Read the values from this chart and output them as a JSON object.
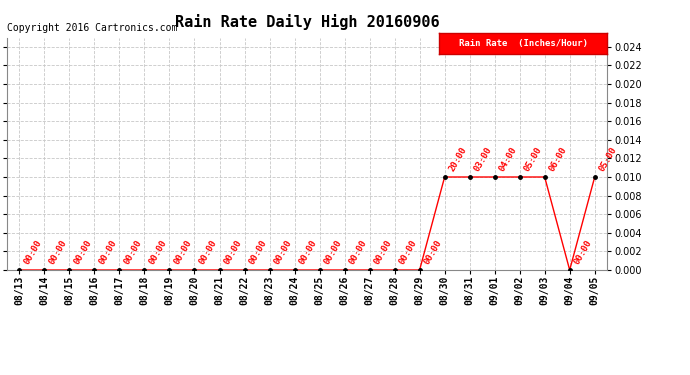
{
  "title": "Rain Rate Daily High 20160906",
  "copyright": "Copyright 2016 Cartronics.com",
  "legend_label": "Rain Rate  (Inches/Hour)",
  "x_labels": [
    "08/13",
    "08/14",
    "08/15",
    "08/16",
    "08/17",
    "08/18",
    "08/19",
    "08/20",
    "08/21",
    "08/22",
    "08/23",
    "08/24",
    "08/25",
    "08/26",
    "08/27",
    "08/28",
    "08/29",
    "08/30",
    "08/31",
    "09/01",
    "09/02",
    "09/03",
    "09/04",
    "09/05"
  ],
  "x_indices": [
    0,
    1,
    2,
    3,
    4,
    5,
    6,
    7,
    8,
    9,
    10,
    11,
    12,
    13,
    14,
    15,
    16,
    17,
    18,
    19,
    20,
    21,
    22,
    23
  ],
  "y_values": [
    0.0,
    0.0,
    0.0,
    0.0,
    0.0,
    0.0,
    0.0,
    0.0,
    0.0,
    0.0,
    0.0,
    0.0,
    0.0,
    0.0,
    0.0,
    0.0,
    0.0,
    0.01,
    0.01,
    0.01,
    0.01,
    0.01,
    0.0,
    0.01
  ],
  "point_labels": [
    "00:00",
    "00:00",
    "00:00",
    "00:00",
    "00:00",
    "00:00",
    "00:00",
    "00:00",
    "00:00",
    "00:00",
    "00:00",
    "00:00",
    "00:00",
    "00:00",
    "00:00",
    "00:00",
    "00:00",
    "20:00",
    "03:00",
    "04:00",
    "05:00",
    "06:00",
    "00:00",
    "05:00"
  ],
  "ylim": [
    0.0,
    0.025
  ],
  "yticks": [
    0.0,
    0.002,
    0.004,
    0.006,
    0.008,
    0.01,
    0.012,
    0.014,
    0.016,
    0.018,
    0.02,
    0.022,
    0.024
  ],
  "line_color": "#ff0000",
  "marker_color": "#000000",
  "label_color": "#ff0000",
  "legend_bg": "#ff0000",
  "legend_fg": "#ffffff",
  "grid_color": "#c8c8c8",
  "background_color": "#ffffff",
  "title_fontsize": 11,
  "label_fontsize": 6.5,
  "tick_fontsize": 7,
  "copyright_fontsize": 7
}
